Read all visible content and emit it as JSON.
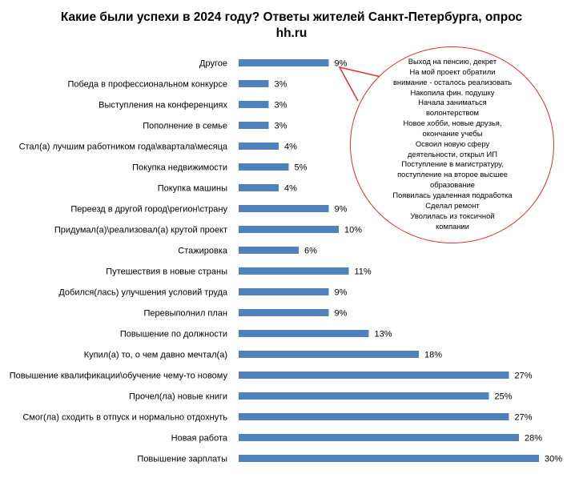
{
  "chart_data": {
    "type": "bar",
    "orientation": "horizontal",
    "title_line1": "Какие были успехи в 2024 году? Ответы жителей Санкт-Петербурга, опрос",
    "title_line2": "hh.ru",
    "categories": [
      "Другое",
      "Победа в профессиональном конкурсе",
      "Выступления на конференциях",
      "Пополнение в семье",
      "Стал(а) лучшим работником года\\квартала\\месяца",
      "Покупка недвижимости",
      "Покупка машины",
      "Переезд в другой город\\регион\\страну",
      "Придумал(а)\\реализовал(а) крутой проект",
      "Стажировка",
      "Путешествия в новые страны",
      "Добился(лась) улучшения условий труда",
      "Перевыполнил план",
      "Повышение по должности",
      "Купил(а) то, о чем давно мечтал(а)",
      "Повышение квалификации\\обучение чему-то новому",
      "Прочел(ла) новые книги",
      "Смог(ла) сходить в отпуск и нормально отдохнуть",
      "Новая работа",
      "Повышение зарплаты"
    ],
    "values": [
      9,
      3,
      3,
      3,
      4,
      5,
      4,
      9,
      10,
      6,
      11,
      9,
      9,
      13,
      18,
      27,
      25,
      27,
      28,
      30
    ],
    "value_labels": [
      "9%",
      "3%",
      "3%",
      "3%",
      "4%",
      "5%",
      "4%",
      "9%",
      "10%",
      "6%",
      "11%",
      "9%",
      "9%",
      "13%",
      "18%",
      "27%",
      "25%",
      "27%",
      "28%",
      "30%"
    ],
    "unit": "%",
    "bar_color": "#4f81bd",
    "grid": false,
    "axis_visible": false
  },
  "callout": {
    "border_color": "#d9342b",
    "lines": [
      "Выход на пенсию, декрет",
      "На мой проект обратили",
      "внимание - осталось реализовать",
      "Накопила фин. подушку",
      "Начала заниматься",
      "волонтерством",
      "Новое хобби, новые друзья,",
      "окончание учебы",
      "Освоил новую сферу",
      "деятельности, открыл ИП",
      "Поступление в магистратуру,",
      "поступление на второе высшее",
      "образование",
      "Появилась удаленная подработка",
      "Сделал ремонт",
      "Уволилась из токсичной",
      "компании"
    ]
  }
}
